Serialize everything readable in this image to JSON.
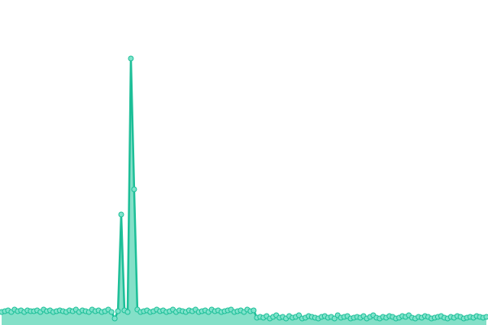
{
  "chart_data": {
    "type": "area",
    "values": [
      16,
      17,
      18,
      16,
      19,
      17,
      18,
      16,
      18,
      17,
      17,
      18,
      16,
      19,
      17,
      18,
      16,
      17,
      18,
      17,
      16,
      18,
      17,
      19,
      16,
      18,
      17,
      16,
      19,
      17,
      18,
      16,
      17,
      19,
      16,
      8,
      17,
      136,
      18,
      16,
      328,
      167,
      19,
      16,
      17,
      18,
      16,
      17,
      19,
      17,
      18,
      16,
      17,
      19,
      16,
      18,
      17,
      16,
      18,
      17,
      19,
      16,
      17,
      18,
      16,
      19,
      17,
      18,
      16,
      17,
      18,
      19,
      16,
      17,
      18,
      16,
      19,
      17,
      18,
      9,
      10,
      9,
      11,
      8,
      10,
      12,
      9,
      10,
      8,
      11,
      9,
      10,
      12,
      8,
      9,
      11,
      10,
      9,
      8,
      10,
      11,
      9,
      10,
      8,
      12,
      9,
      10,
      11,
      8,
      9,
      10,
      9,
      11,
      8,
      10,
      12,
      9,
      8,
      10,
      9,
      11,
      10,
      8,
      9,
      11,
      10,
      12,
      9,
      8,
      10,
      9,
      11,
      10,
      8,
      9,
      10,
      11,
      9,
      8,
      10,
      9,
      11,
      10,
      8,
      9,
      10,
      9,
      11,
      10,
      9,
      10
    ],
    "ylim": [
      0,
      400
    ],
    "line_color": "#1dbf98",
    "area_color": "#84e0c8",
    "marker_color": "#7fe3cb"
  }
}
